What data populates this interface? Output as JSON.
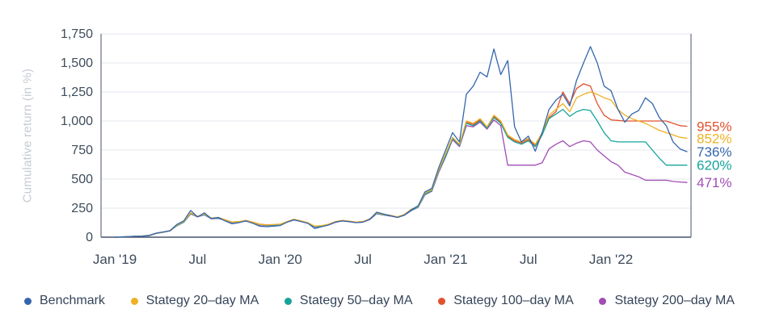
{
  "chart_data": {
    "type": "line",
    "title": "",
    "xlabel": "",
    "ylabel": "Cumulative return (in %)",
    "ylim": [
      0,
      1750
    ],
    "xlim": [
      -1,
      41.8
    ],
    "x_step": 0.5,
    "grid": "horizontal",
    "legend_position": "bottom",
    "yticks": [
      0,
      250,
      500,
      750,
      1000,
      1250,
      1500,
      1750
    ],
    "ytick_labels": [
      "0",
      "250",
      "500",
      "750",
      "1,000",
      "1,250",
      "1,500",
      "1,750"
    ],
    "xticks": [
      0,
      6,
      12,
      18,
      24,
      30,
      36
    ],
    "xtick_labels": [
      "Jan '19",
      "Jul",
      "Jan '20",
      "Jul",
      "Jan '21",
      "Jul",
      "Jan '22"
    ],
    "colors": {
      "grid": "#e3e7ed",
      "axis": "#47536b",
      "tick_text": "#3d4c5c"
    },
    "series": [
      {
        "name": "Benchmark",
        "color": "#3566ad",
        "end_label": "736%",
        "values": [
          0,
          2,
          5,
          8,
          9,
          15,
          35,
          45,
          55,
          110,
          140,
          230,
          175,
          210,
          160,
          170,
          140,
          115,
          125,
          140,
          120,
          95,
          90,
          95,
          100,
          130,
          150,
          135,
          120,
          75,
          90,
          105,
          130,
          140,
          135,
          125,
          130,
          155,
          215,
          200,
          185,
          170,
          190,
          235,
          270,
          390,
          420,
          600,
          750,
          900,
          820,
          1230,
          1300,
          1420,
          1380,
          1620,
          1400,
          1520,
          950,
          820,
          870,
          740,
          900,
          1100,
          1180,
          1230,
          1130,
          1350,
          1500,
          1640,
          1500,
          1300,
          1260,
          1100,
          990,
          1060,
          1090,
          1200,
          1150,
          1030,
          960,
          820,
          760,
          736
        ]
      },
      {
        "name": "Stategy 20–day MA",
        "color": "#eeb124",
        "end_label": "852%",
        "values": [
          0,
          2,
          5,
          8,
          10,
          16,
          34,
          44,
          58,
          105,
          135,
          210,
          180,
          200,
          165,
          170,
          150,
          130,
          135,
          145,
          130,
          110,
          105,
          108,
          112,
          135,
          155,
          140,
          125,
          95,
          100,
          112,
          135,
          145,
          138,
          130,
          135,
          158,
          210,
          195,
          188,
          175,
          195,
          240,
          265,
          380,
          410,
          580,
          720,
          860,
          800,
          1000,
          980,
          1020,
          950,
          1050,
          1000,
          880,
          840,
          820,
          850,
          800,
          900,
          1050,
          1100,
          1150,
          1080,
          1200,
          1230,
          1250,
          1230,
          1200,
          1180,
          1100,
          1050,
          1020,
          1000,
          980,
          950,
          920,
          900,
          880,
          860,
          852
        ]
      },
      {
        "name": "Stategy 50–day MA",
        "color": "#16a39c",
        "end_label": "620%",
        "values": [
          0,
          2,
          4,
          7,
          9,
          14,
          33,
          43,
          56,
          100,
          130,
          205,
          178,
          195,
          160,
          165,
          148,
          128,
          132,
          140,
          128,
          108,
          102,
          105,
          110,
          132,
          150,
          138,
          122,
          90,
          95,
          108,
          130,
          142,
          135,
          128,
          132,
          155,
          205,
          192,
          185,
          172,
          190,
          232,
          260,
          370,
          400,
          570,
          700,
          850,
          790,
          980,
          960,
          1000,
          940,
          1030,
          980,
          860,
          820,
          800,
          830,
          780,
          880,
          1020,
          1060,
          1100,
          1040,
          1080,
          1100,
          1090,
          1000,
          900,
          830,
          820,
          820,
          820,
          820,
          820,
          750,
          680,
          620,
          620,
          620,
          620
        ]
      },
      {
        "name": "Stategy 100–day MA",
        "color": "#e2512d",
        "end_label": "955%",
        "values": [
          0,
          2,
          5,
          8,
          9,
          15,
          34,
          44,
          57,
          102,
          132,
          208,
          176,
          198,
          162,
          168,
          150,
          130,
          133,
          142,
          130,
          112,
          106,
          108,
          112,
          134,
          152,
          140,
          124,
          92,
          98,
          110,
          132,
          144,
          137,
          130,
          134,
          157,
          208,
          194,
          187,
          174,
          192,
          236,
          262,
          375,
          405,
          575,
          710,
          855,
          795,
          990,
          970,
          1010,
          945,
          1040,
          990,
          870,
          830,
          810,
          840,
          790,
          890,
          1030,
          1080,
          1250,
          1150,
          1280,
          1320,
          1300,
          1150,
          1050,
          1010,
          1005,
          1000,
          1000,
          1000,
          1000,
          1000,
          1000,
          1000,
          980,
          960,
          955
        ]
      },
      {
        "name": "Stategy 200–day MA",
        "color": "#a14db5",
        "end_label": "471%",
        "values": [
          0,
          2,
          4,
          7,
          8,
          13,
          32,
          42,
          55,
          98,
          128,
          200,
          175,
          192,
          158,
          162,
          145,
          125,
          130,
          138,
          125,
          105,
          100,
          103,
          108,
          130,
          148,
          136,
          120,
          88,
          92,
          105,
          128,
          140,
          133,
          126,
          130,
          152,
          202,
          190,
          182,
          170,
          188,
          228,
          256,
          365,
          395,
          560,
          690,
          840,
          780,
          960,
          950,
          990,
          930,
          1010,
          960,
          620,
          620,
          620,
          620,
          620,
          640,
          760,
          800,
          830,
          780,
          810,
          830,
          820,
          750,
          700,
          650,
          620,
          560,
          540,
          520,
          490,
          490,
          490,
          490,
          480,
          475,
          471
        ]
      }
    ]
  }
}
